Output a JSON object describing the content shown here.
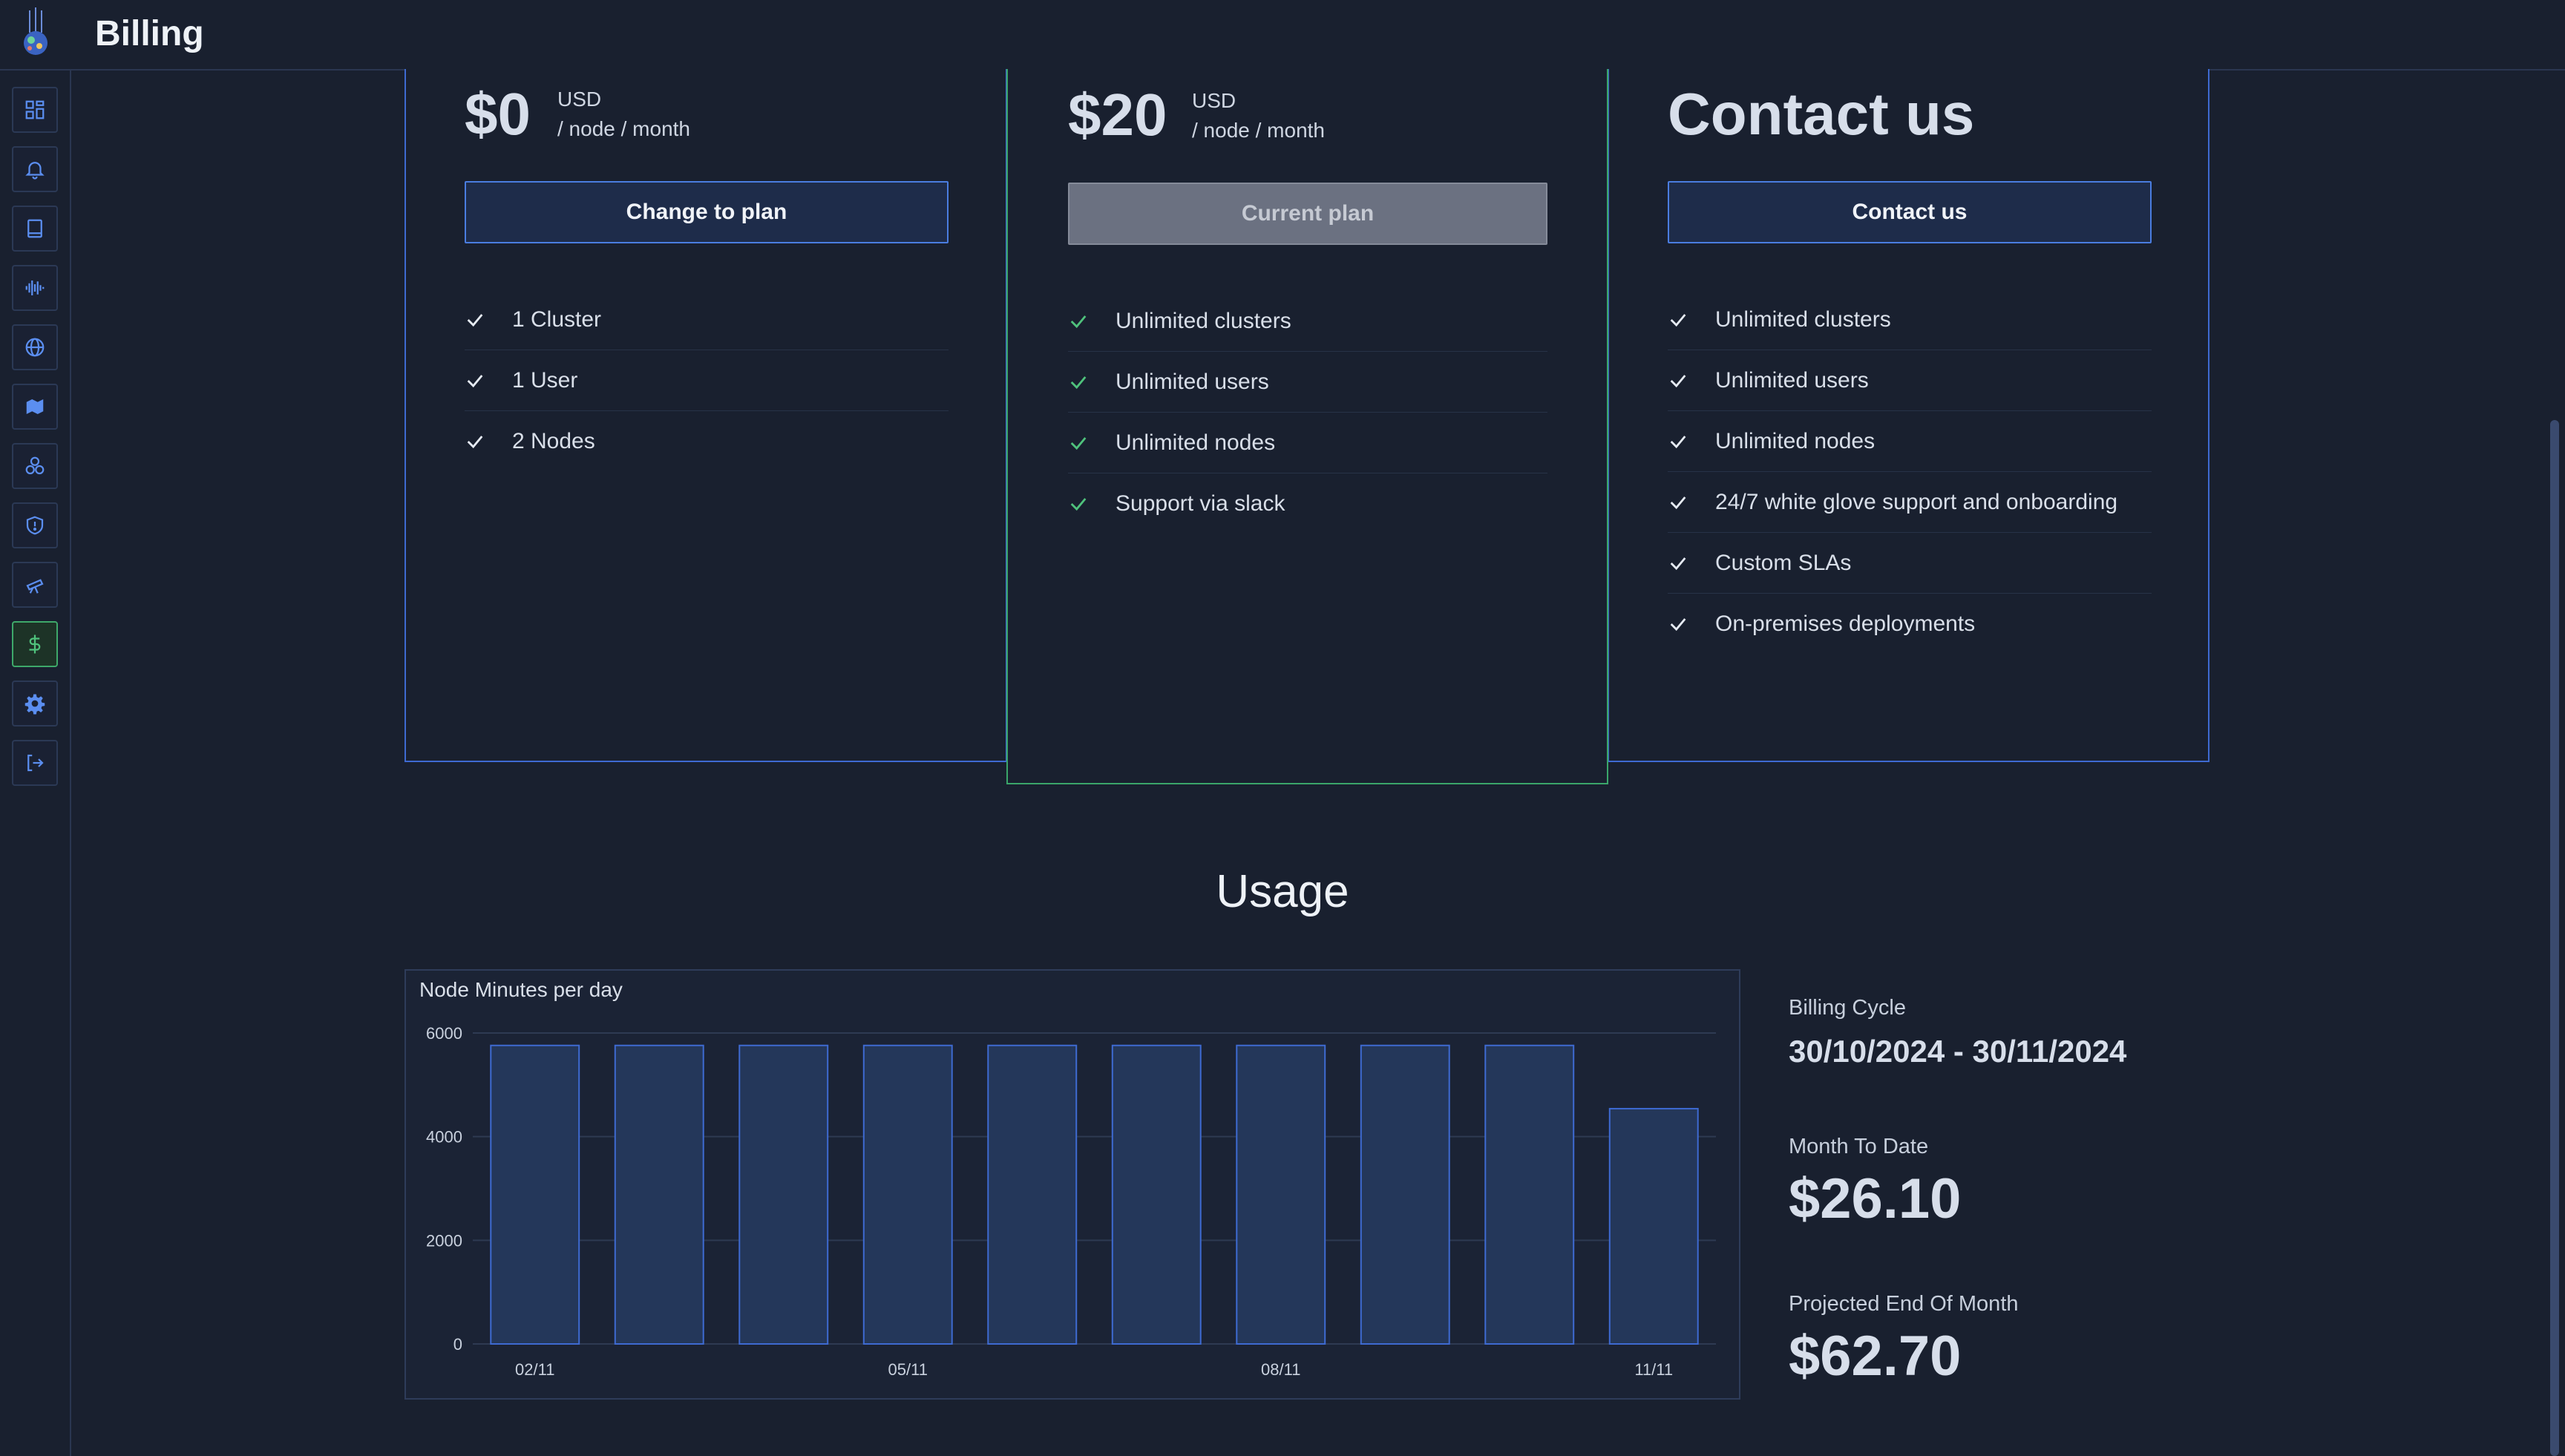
{
  "header": {
    "title": "Billing"
  },
  "sidebar": {
    "items": [
      {
        "name": "dashboard-icon"
      },
      {
        "name": "bell-icon"
      },
      {
        "name": "book-icon"
      },
      {
        "name": "waveform-icon"
      },
      {
        "name": "globe-icon"
      },
      {
        "name": "map-icon"
      },
      {
        "name": "cluster-icon"
      },
      {
        "name": "shield-alert-icon"
      },
      {
        "name": "telescope-icon"
      },
      {
        "name": "dollar-icon",
        "active": true
      },
      {
        "name": "gear-icon"
      },
      {
        "name": "logout-icon"
      }
    ]
  },
  "plans": {
    "free": {
      "price": "$0",
      "currency": "USD",
      "per": "/ node / month",
      "button": "Change to plan",
      "features": [
        "1 Cluster",
        "1 User",
        "2 Nodes"
      ]
    },
    "team": {
      "price": "$20",
      "currency": "USD",
      "per": "/ node / month",
      "button": "Current plan",
      "features": [
        "Unlimited clusters",
        "Unlimited users",
        "Unlimited nodes",
        "Support via slack"
      ]
    },
    "enterprise": {
      "price": "Contact us",
      "button": "Contact us",
      "features": [
        "Unlimited clusters",
        "Unlimited users",
        "Unlimited nodes",
        "24/7 white glove support and onboarding",
        "Custom SLAs",
        "On-premises deployments"
      ]
    }
  },
  "usage": {
    "title": "Usage",
    "billing_cycle_label": "Billing Cycle",
    "billing_cycle": "30/10/2024 - 30/11/2024",
    "month_to_date_label": "Month To Date",
    "month_to_date": "$26.10",
    "projected_label": "Projected End Of Month",
    "projected": "$62.70"
  },
  "chart_data": {
    "type": "bar",
    "title": "Node Minutes per day",
    "xlabel": "",
    "ylabel": "",
    "categories": [
      "02/11",
      "03/11",
      "04/11",
      "05/11",
      "06/11",
      "07/11",
      "08/11",
      "09/11",
      "10/11",
      "11/11"
    ],
    "tick_labels": [
      "02/11",
      "05/11",
      "08/11",
      "11/11"
    ],
    "values": [
      5760,
      5760,
      5760,
      5760,
      5760,
      5760,
      5760,
      5760,
      5760,
      4540
    ],
    "ylim": [
      0,
      6000
    ],
    "yticks": [
      0,
      2000,
      4000,
      6000
    ],
    "grid": true,
    "colors": {
      "bar_fill": "#24375a",
      "bar_stroke": "#3e6ad1",
      "grid": "#2e3a52"
    }
  }
}
